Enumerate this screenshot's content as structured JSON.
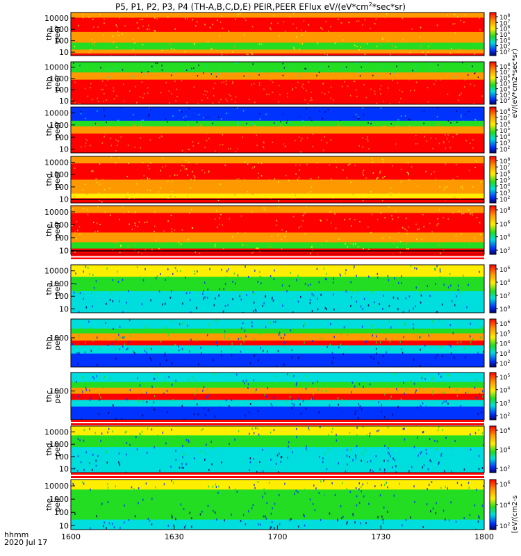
{
  "title": "P5, P1, P2, P3, P4 (TH-A,B,C,D,E) PEIR,PEER EFlux eV/(eV*cm",
  "title_sup": "2",
  "title_end": "*sec*sr)",
  "time_label_line1": "hhmm",
  "time_label_line2": "2020 Jul 17",
  "colors": {
    "red": "#ff0000",
    "orange": "#ff9900",
    "yellow": "#ffee00",
    "green": "#22dd22",
    "cyan": "#00dddd",
    "blue": "#0033ff",
    "navy": "#000066"
  },
  "chart_data": {
    "type": "heatmap",
    "x_ticks": [
      "1600",
      "1630",
      "1700",
      "1730",
      "1800"
    ],
    "x_range": [
      "16:00",
      "18:00"
    ],
    "y_scale": "log",
    "panels": [
      {
        "probe": "tha",
        "instrument": "peer",
        "y_ticks": [
          "10000",
          "1000",
          "100",
          "10"
        ],
        "y_range": [
          5,
          30000
        ],
        "colorbar_ticks": [
          "10^8",
          "10^7",
          "10^6",
          "10^5",
          "10^4",
          "10^3",
          "10^2"
        ],
        "colorbar_range": [
          100,
          100000000
        ]
      },
      {
        "probe": "thb",
        "instrument": "peer",
        "y_ticks": [
          "10000",
          "1000",
          "100",
          "10"
        ],
        "y_range": [
          5,
          30000
        ],
        "colorbar_ticks": [
          "10^8",
          "10^7",
          "10^6",
          "10^5",
          "10^4",
          "10^3",
          "10^2"
        ],
        "colorbar_range": [
          100,
          100000000
        ]
      },
      {
        "probe": "thc",
        "instrument": "peer",
        "y_ticks": [
          "10000",
          "1000",
          "100",
          "10"
        ],
        "y_range": [
          5,
          30000
        ],
        "colorbar_ticks": [
          "10^8",
          "10^7",
          "10^6",
          "10^5",
          "10^4",
          "10^3",
          "10^2"
        ],
        "colorbar_range": [
          100,
          100000000
        ]
      },
      {
        "probe": "thd",
        "instrument": "peer",
        "y_ticks": [
          "10000",
          "1000",
          "100",
          "10"
        ],
        "y_range": [
          5,
          30000
        ],
        "colorbar_ticks": [
          "10^8",
          "10^7",
          "10^6",
          "10^5",
          "10^4",
          "10^3",
          "10^2"
        ],
        "colorbar_range": [
          100,
          100000000
        ]
      },
      {
        "probe": "the",
        "instrument": "peer",
        "y_ticks": [
          "10000",
          "1000",
          "100",
          "10"
        ],
        "y_range": [
          5,
          30000
        ],
        "colorbar_ticks": [
          "10^8",
          "10^6",
          "10^4",
          "10^2"
        ],
        "colorbar_range": [
          100,
          100000000
        ]
      },
      {
        "probe": "tha",
        "instrument": "peir",
        "y_ticks": [
          "10000",
          "1000",
          "100",
          "10"
        ],
        "y_range": [
          5,
          30000
        ],
        "colorbar_ticks": [
          "10^6",
          "10^4",
          "10^2",
          "10^0"
        ],
        "colorbar_range": [
          1,
          1000000
        ]
      },
      {
        "probe": "thb",
        "instrument": "peir",
        "y_ticks": [
          "1000"
        ],
        "y_range": [
          5,
          30000
        ],
        "colorbar_ticks": [
          "10^6",
          "10^5",
          "10^4",
          "10^3",
          "10^2"
        ],
        "colorbar_range": [
          100,
          1000000
        ]
      },
      {
        "probe": "thc",
        "instrument": "peir",
        "y_ticks": [
          "1000"
        ],
        "y_range": [
          5,
          30000
        ],
        "colorbar_ticks": [
          "10^5",
          "10^4",
          "10^3",
          "10^2"
        ],
        "colorbar_range": [
          100,
          1000000
        ]
      },
      {
        "probe": "thd",
        "instrument": "peir",
        "y_ticks": [
          "10000",
          "1000",
          "100",
          "10"
        ],
        "y_range": [
          5,
          30000
        ],
        "colorbar_ticks": [
          "10^6",
          "10^4",
          "10^2"
        ],
        "colorbar_range": [
          100,
          1000000
        ]
      },
      {
        "probe": "the",
        "instrument": "peir",
        "y_ticks": [
          "10000",
          "1000",
          "100",
          "10"
        ],
        "y_range": [
          5,
          30000
        ],
        "colorbar_ticks": [
          "10^6",
          "10^4",
          "10^2"
        ],
        "colorbar_range": [
          100,
          1000000
        ]
      }
    ],
    "colorbar_label": "eV/(eV*cm2*sec*sr)",
    "colorbar_label_bottom": "[eV/(cm2-s"
  }
}
